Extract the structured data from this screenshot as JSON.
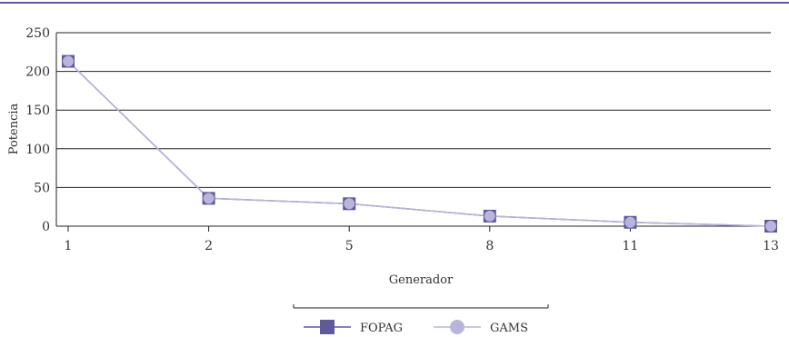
{
  "chart_data": {
    "type": "line",
    "categories": [
      "1",
      "2",
      "5",
      "8",
      "11",
      "13"
    ],
    "xlabel": "Generador",
    "ylabel": "Potencia",
    "ylim": [
      0,
      250
    ],
    "yticks": [
      0,
      50,
      100,
      150,
      200,
      250
    ],
    "grid": true,
    "legend": "bottom",
    "series": [
      {
        "name": "FOPAG",
        "values": [
          213,
          36,
          29,
          13,
          5,
          0
        ],
        "color": "#5f5a9c",
        "marker": "square"
      },
      {
        "name": "GAMS",
        "values": [
          213,
          36,
          29,
          13,
          5,
          0
        ],
        "color": "#b9b4dc",
        "marker": "circle"
      }
    ],
    "colors": {
      "top_rule": "#5f5a9c",
      "grid": "#222222",
      "axis": "#222222"
    }
  }
}
